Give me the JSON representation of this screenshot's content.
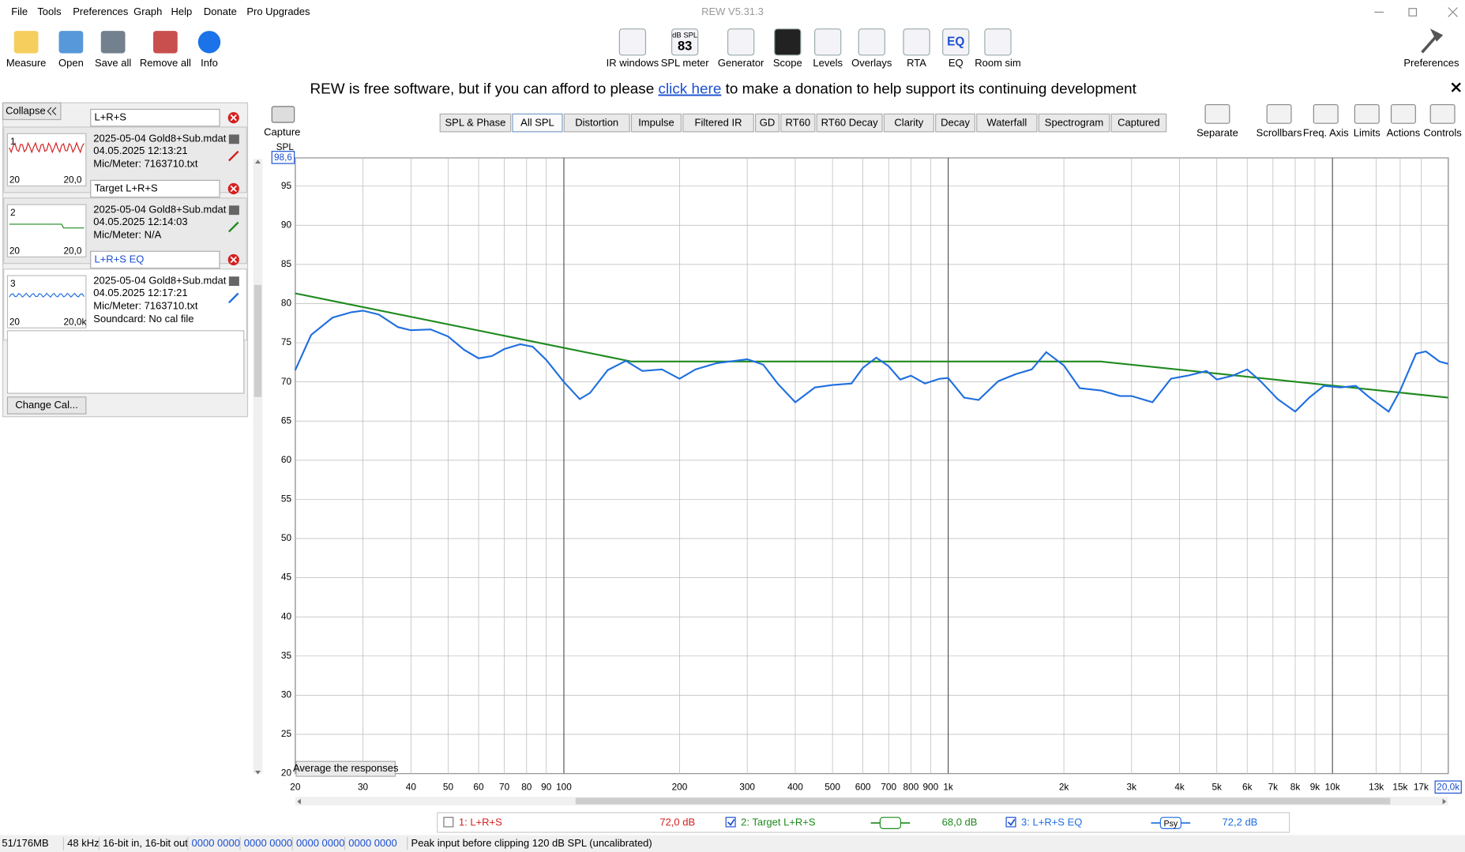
{
  "window": {
    "title": "REW V5.31.3",
    "menu": [
      "File",
      "Tools",
      "Preferences",
      "Graph",
      "Help",
      "Donate",
      "Pro Upgrades"
    ]
  },
  "toolbar": {
    "left": [
      "Measure",
      "Open",
      "Save all",
      "Remove all",
      "Info"
    ],
    "center": [
      "IR windows",
      "SPL meter",
      "Generator",
      "Scope",
      "Levels",
      "Overlays",
      "RTA",
      "EQ",
      "Room sim"
    ],
    "spl_meter_icon": {
      "unit": "dB SPL",
      "value": "83"
    },
    "eq_icon": "EQ",
    "right": "Preferences"
  },
  "banner": {
    "before": "REW is free software, but if you can afford to please",
    "link": "click here",
    "after": "to make a donation to help support its continuing development"
  },
  "measurements_panel": {
    "collapse": "Collapse",
    "selected": 2,
    "items": [
      {
        "index": "1",
        "name": "L+R+S",
        "color": "#d42020",
        "file": "2025-05-04 Gold8+Sub.mdat",
        "date": "04.05.2025 12:13:21",
        "mic": "Mic/Meter: 7163710.txt",
        "thumb_min": "20",
        "thumb_max": "20,0"
      },
      {
        "index": "2",
        "name": "Target L+R+S",
        "color": "#1e8a1e",
        "file": "2025-05-04 Gold8+Sub.mdat",
        "date": "04.05.2025 12:14:03",
        "mic": "Mic/Meter: N/A",
        "thumb_min": "20",
        "thumb_max": "20,0"
      },
      {
        "index": "3",
        "name": "L+R+S EQ",
        "color": "#1f6fe0",
        "file": "2025-05-04 Gold8+Sub.mdat",
        "date": "04.05.2025 12:17:21",
        "mic": "Mic/Meter: 7163710.txt",
        "soundcard": "Soundcard: No cal file",
        "thumb_min": "20",
        "thumb_max": "20,0k"
      }
    ],
    "change_cal": "Change Cal..."
  },
  "graph_panel": {
    "capture": "Capture",
    "tabs": [
      "SPL & Phase",
      "All SPL",
      "Distortion",
      "Impulse",
      "Filtered IR",
      "GD",
      "RT60",
      "RT60 Decay",
      "Clarity",
      "Decay",
      "Waterfall",
      "Spectrogram",
      "Captured"
    ],
    "selected_tab": 1,
    "tools": [
      "Separate",
      "Scrollbars",
      "Freq. Axis",
      "Limits",
      "Actions",
      "Controls"
    ],
    "average_button": "Average the responses"
  },
  "chart_data": {
    "type": "line",
    "y_label": "SPL",
    "xscale": "log",
    "grid": true,
    "xlim": [
      20,
      20000
    ],
    "ylim": [
      20,
      98.6
    ],
    "yticks": [
      20,
      25,
      30,
      35,
      40,
      45,
      50,
      55,
      60,
      65,
      70,
      75,
      80,
      85,
      90,
      95,
      {
        "value": 98.6,
        "label": "98,6"
      }
    ],
    "xticks": [
      20,
      30,
      40,
      50,
      60,
      70,
      80,
      90,
      100,
      200,
      300,
      400,
      500,
      600,
      700,
      800,
      900,
      {
        "value": 1000,
        "label": "1k"
      },
      {
        "value": 2000,
        "label": "2k"
      },
      {
        "value": 3000,
        "label": "3k"
      },
      {
        "value": 4000,
        "label": "4k"
      },
      {
        "value": 5000,
        "label": "5k"
      },
      {
        "value": 6000,
        "label": "6k"
      },
      {
        "value": 7000,
        "label": "7k"
      },
      {
        "value": 8000,
        "label": "8k"
      },
      {
        "value": 9000,
        "label": "9k"
      },
      {
        "value": 10000,
        "label": "10k"
      },
      {
        "value": 13000,
        "label": "13k"
      },
      {
        "value": 15000,
        "label": "15k"
      },
      {
        "value": 17000,
        "label": "17k"
      },
      {
        "value": 20000,
        "label": "20,0k"
      }
    ],
    "series": [
      {
        "name": "1: L+R+S",
        "color": "#d42020",
        "checked": false,
        "cursor_label": "72,0 dB"
      },
      {
        "name": "2: Target L+R+S",
        "color": "#1e8a1e",
        "checked": true,
        "cursor_label": "68,0 dB",
        "x": [
          20,
          150,
          2500,
          20000
        ],
        "values": [
          81.3,
          72.6,
          72.6,
          68.0
        ]
      },
      {
        "name": "3: L+R+S EQ",
        "color": "#1f6fe0",
        "checked": true,
        "cursor_label": "72,2 dB",
        "smoothing_label": "Psy",
        "x": [
          20,
          22,
          25,
          28,
          30,
          33,
          37,
          40,
          45,
          50,
          55,
          60,
          65,
          70,
          77,
          83,
          90,
          100,
          110,
          117,
          130,
          145,
          160,
          180,
          200,
          220,
          250,
          300,
          330,
          360,
          400,
          450,
          500,
          560,
          600,
          650,
          700,
          750,
          800,
          870,
          950,
          1000,
          1100,
          1200,
          1350,
          1500,
          1650,
          1800,
          2000,
          2200,
          2500,
          2800,
          3000,
          3400,
          3800,
          4200,
          4700,
          5000,
          5500,
          6000,
          6500,
          7200,
          8000,
          8700,
          9500,
          10500,
          11500,
          12500,
          14000,
          15000,
          16500,
          17500,
          19000,
          20000
        ],
        "values": [
          71.5,
          76,
          78.2,
          78.9,
          79.1,
          78.6,
          77,
          76.6,
          76.7,
          75.8,
          74.1,
          73,
          73.3,
          74.2,
          74.8,
          74.5,
          72.8,
          70,
          67.8,
          68.6,
          71.5,
          72.7,
          71.4,
          71.6,
          70.4,
          71.6,
          72.4,
          72.9,
          72.2,
          69.8,
          67.4,
          69.3,
          69.6,
          69.8,
          71.8,
          73.1,
          72,
          70.3,
          70.8,
          69.8,
          70.4,
          70.5,
          68,
          67.7,
          70.1,
          71,
          71.6,
          73.8,
          72.1,
          69.2,
          68.9,
          68.2,
          68.2,
          67.4,
          70.4,
          70.8,
          71.4,
          70.3,
          70.8,
          71.6,
          70.1,
          67.8,
          66.2,
          68,
          69.5,
          69.3,
          69.5,
          68,
          66.2,
          68.9,
          73.6,
          73.9,
          72.6,
          72.3
        ]
      }
    ]
  },
  "status_bar": [
    "51/176MB",
    "48 kHz",
    "16-bit in, 16-bit out",
    "0000 0000",
    "0000 0000",
    "0000 0000",
    "0000 0000",
    "Peak input before clipping 120 dB SPL (uncalibrated)"
  ]
}
